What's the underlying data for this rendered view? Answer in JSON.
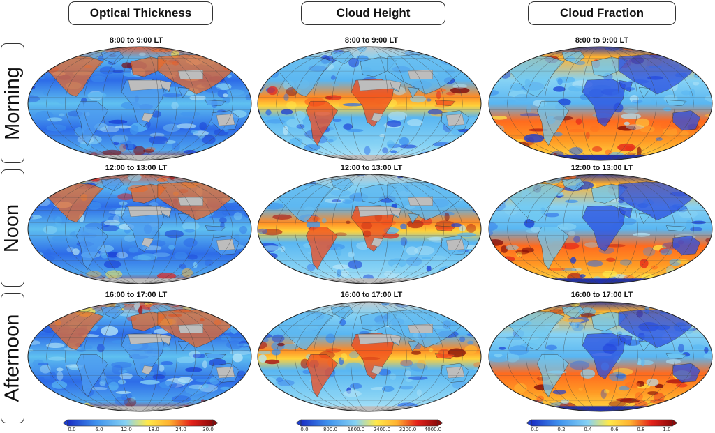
{
  "columns": [
    {
      "title": "Optical Thickness",
      "colormap": "ot",
      "colorbar": {
        "ticks": [
          "0.0",
          "6.0",
          "12.0",
          "18.0",
          "24.0",
          "30.0"
        ]
      }
    },
    {
      "title": "Cloud Height",
      "colormap": "ch",
      "colorbar": {
        "ticks": [
          "0.0",
          "800.0",
          "1600.0",
          "2400.0",
          "3200.0",
          "4000.0"
        ]
      }
    },
    {
      "title": "Cloud Fraction",
      "colormap": "cf",
      "colorbar": {
        "ticks": [
          "0.0",
          "0.2",
          "0.4",
          "0.6",
          "0.8",
          "1.0"
        ]
      }
    }
  ],
  "rows": [
    {
      "label": "Morning",
      "time": "8:00 to 9:00 LT"
    },
    {
      "label": "Noon",
      "time": "12:00 to 13:00 LT"
    },
    {
      "label": "Afternoon",
      "time": "16:00 to 17:00 LT"
    }
  ],
  "colors": {
    "low": "#1f3fd1",
    "mid": "#5fc6ee",
    "high": "#ffe94a",
    "max": "#8b0a0a",
    "land_no_data": "#bdbdbd",
    "antarctic": "#2332a8"
  }
}
